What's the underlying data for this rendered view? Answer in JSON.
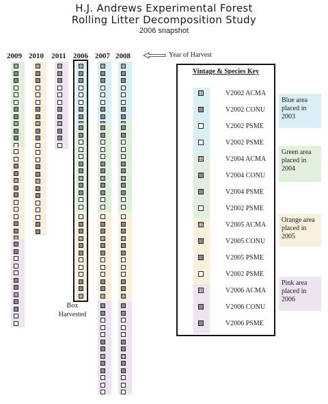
{
  "title": {
    "line1": "H.J. Andrews Experimental Forest",
    "line2": "Rolling Litter Decomposition Study",
    "line3": "2006 snapshot"
  },
  "years": [
    "2009",
    "2010",
    "2011",
    "2006",
    "2007",
    "2008"
  ],
  "year_of_harvest_label": "Year of Harvest",
  "box_label": "Box Harvested",
  "key": {
    "title": "Vintage & Species Key",
    "items": [
      {
        "label": "V2002 ACMA",
        "fill": "spot"
      },
      {
        "label": "V2002 CONU",
        "fill": "dark"
      },
      {
        "label": "V2002 PSME",
        "fill": "white"
      },
      {
        "label": "V2002 PSME",
        "fill": "white"
      },
      {
        "label": "V2004 ACMA",
        "fill": "spot"
      },
      {
        "label": "V2004 CONU",
        "fill": "dark"
      },
      {
        "label": "V2004 PSME",
        "fill": "dark"
      },
      {
        "label": "V2002 PSME",
        "fill": "white"
      },
      {
        "label": "V2005 ACMA",
        "fill": "spot"
      },
      {
        "label": "V2005 CONU",
        "fill": "dark"
      },
      {
        "label": "V2005 PSME",
        "fill": "dark"
      },
      {
        "label": "V2002 PSME",
        "fill": "white"
      },
      {
        "label": "V2006 ACMA",
        "fill": "spot"
      },
      {
        "label": "V2006 CONU",
        "fill": "dark"
      },
      {
        "label": "V2006 PSME",
        "fill": "dark"
      }
    ]
  },
  "notes": {
    "blue": "Blue area placed in 2003",
    "green": "Green area placed in 2004",
    "orange": "Orange area placed in 2005",
    "pink": "Pink area placed in 2006"
  },
  "colors": {
    "blue": "#daeef5",
    "green": "#e0f0dc",
    "orange": "#f8efdc",
    "pink": "#eee3f0"
  }
}
